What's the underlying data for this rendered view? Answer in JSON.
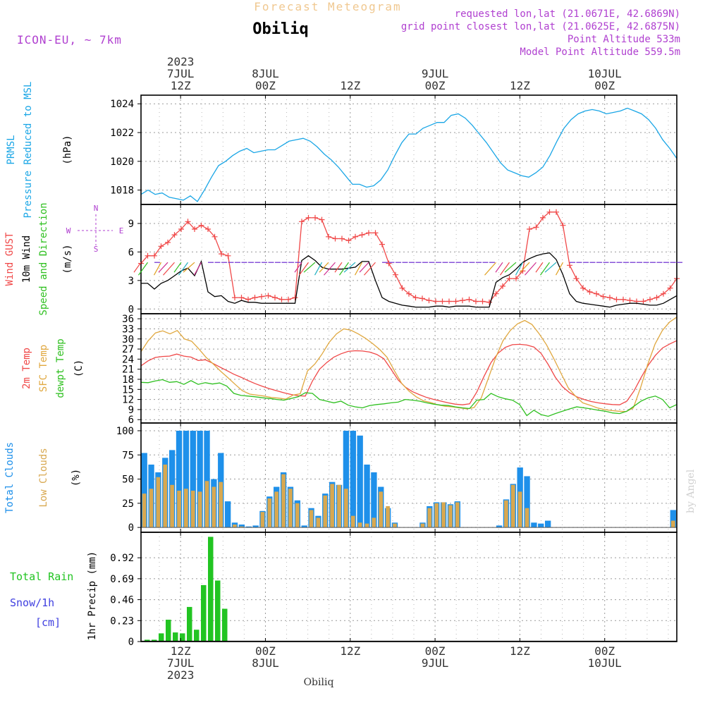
{
  "header": {
    "super_title": "Forecast Meteogram",
    "title": "Obiliq",
    "model": "ICON-EU, ~ 7km",
    "requested": "requested lon,lat (21.0671E, 42.6869N)",
    "grid_point": "grid point closest lon,lat (21.0625E, 42.6875N)",
    "point_alt": "Point Altitude 533m",
    "model_alt": "Model Point Altitude 559.5m",
    "watermark": "by Angel",
    "footer_station": "Obiliq"
  },
  "colors": {
    "pressure": "#1aa6e6",
    "gust": "#f04848",
    "wind": "#000000",
    "wind_dir": "#2fc020",
    "temp": "#f04848",
    "sfc_temp": "#e0a840",
    "dewpt": "#2fc020",
    "total_cloud": "#1e90ea",
    "low_cloud": "#d8a850",
    "rain": "#22c422",
    "snow": "#4040e0",
    "purple_text": "#b040d0",
    "title_orange": "#f0c890"
  },
  "time_axis": {
    "top_labels": [
      {
        "h": 12,
        "lines": [
          "2023",
          "7JUL",
          "12Z"
        ]
      },
      {
        "h": 24,
        "lines": [
          "8JUL",
          "00Z"
        ]
      },
      {
        "h": 36,
        "lines": [
          "12Z"
        ]
      },
      {
        "h": 48,
        "lines": [
          "9JUL",
          "00Z"
        ]
      },
      {
        "h": 60,
        "lines": [
          "12Z"
        ]
      },
      {
        "h": 72,
        "lines": [
          "10JUL",
          "00Z"
        ]
      }
    ],
    "bottom_labels": [
      {
        "h": 12,
        "lines": [
          "12Z",
          "7JUL",
          "2023"
        ]
      },
      {
        "h": 24,
        "lines": [
          "00Z",
          "8JUL"
        ]
      },
      {
        "h": 36,
        "lines": [
          "12Z"
        ]
      },
      {
        "h": 48,
        "lines": [
          "00Z",
          "9JUL"
        ]
      },
      {
        "h": 60,
        "lines": [
          "12Z"
        ]
      },
      {
        "h": 72,
        "lines": [
          "00Z",
          "10JUL"
        ]
      }
    ]
  },
  "chart_data": [
    {
      "type": "line",
      "panel": "pressure",
      "ylabel_lines": [
        "PRMSL",
        "Pressure Reduced to MSL",
        "(hPa)"
      ],
      "ylim": [
        1017,
        1024.6
      ],
      "yticks": [
        1018,
        1020,
        1022,
        1024
      ],
      "x_start_hours": 6.4,
      "x_end_hours": 82.2,
      "series": [
        {
          "values": [
            1017.7,
            1018.0,
            1017.7,
            1017.8,
            1017.5,
            1017.4,
            1017.3,
            1017.6,
            1017.2,
            1018.0,
            1018.9,
            1019.7,
            1020.0,
            1020.4,
            1020.7,
            1020.9,
            1020.6,
            1020.7,
            1020.8,
            1020.8,
            1021.1,
            1021.4,
            1021.5,
            1021.6,
            1021.4,
            1021.0,
            1020.5,
            1020.1,
            1019.6,
            1019.0,
            1018.4,
            1018.4,
            1018.2,
            1018.3,
            1018.7,
            1019.4,
            1020.4,
            1021.3,
            1021.9,
            1021.9,
            1022.3,
            1022.5,
            1022.7,
            1022.7,
            1023.2,
            1023.3,
            1023.0,
            1022.5,
            1021.9,
            1021.3,
            1020.6,
            1019.9,
            1019.4,
            1019.2,
            1019.0,
            1018.9,
            1019.2,
            1019.6,
            1020.4,
            1021.4,
            1022.3,
            1022.9,
            1023.3,
            1023.5,
            1023.6,
            1023.5,
            1023.3,
            1023.4,
            1023.5,
            1023.7,
            1023.5,
            1023.3,
            1022.9,
            1022.3,
            1021.5,
            1020.9,
            1020.2
          ]
        }
      ]
    },
    {
      "type": "line",
      "panel": "wind",
      "ylabel_lines": [
        "Wind GUST",
        "10m Wind",
        "Speed and Direction",
        "(m/s)"
      ],
      "compass": {
        "n": "N",
        "s": "S",
        "e": "E",
        "w": "W"
      },
      "ylim": [
        -0.5,
        11
      ],
      "yticks": [
        0,
        3,
        6,
        9
      ],
      "x_start_hours": 6.4,
      "x_end_hours": 82.2,
      "series": [
        {
          "values": [
            4.8,
            5.6,
            5.6,
            6.6,
            7.0,
            7.8,
            8.4,
            9.2,
            8.4,
            8.8,
            8.4,
            7.6,
            5.8,
            5.6,
            1.2,
            1.2,
            1.0,
            1.2,
            1.3,
            1.4,
            1.2,
            1.0,
            1.0,
            1.2,
            9.2,
            9.6,
            9.6,
            9.4,
            7.6,
            7.4,
            7.4,
            7.2,
            7.6,
            7.8,
            8.0,
            8.0,
            6.8,
            4.8,
            3.6,
            2.2,
            1.6,
            1.2,
            1.1,
            0.9,
            0.8,
            0.8,
            0.8,
            0.8,
            0.9,
            1.0,
            0.8,
            0.8,
            0.7,
            1.6,
            2.4,
            3.2,
            3.2,
            4.0,
            8.4,
            8.6,
            9.6,
            10.2,
            10.2,
            8.8,
            4.6,
            3.2,
            2.2,
            1.8,
            1.6,
            1.3,
            1.2,
            1.0,
            1.0,
            0.9,
            0.8,
            0.8,
            1.0,
            1.2,
            1.6,
            2.2,
            3.2
          ]
        },
        {
          "values": [
            2.7,
            2.7,
            2.1,
            2.7,
            3.0,
            3.5,
            4.0,
            4.3,
            3.5,
            5.0,
            1.8,
            1.3,
            1.4,
            0.8,
            0.6,
            0.9,
            0.7,
            0.7,
            0.6,
            0.6,
            0.6,
            0.6,
            0.6,
            0.6,
            5.1,
            5.6,
            5.1,
            4.4,
            4.2,
            4.2,
            4.2,
            4.3,
            4.4,
            5.0,
            5.0,
            3.0,
            1.2,
            0.8,
            0.6,
            0.4,
            0.3,
            0.2,
            0.2,
            0.2,
            0.3,
            0.3,
            0.2,
            0.3,
            0.3,
            0.3,
            0.2,
            0.2,
            0.2,
            2.8,
            3.3,
            3.6,
            4.2,
            4.9,
            5.3,
            5.6,
            5.8,
            5.9,
            5.2,
            3.6,
            1.6,
            0.8,
            0.6,
            0.5,
            0.4,
            0.3,
            0.2,
            0.4,
            0.5,
            0.6,
            0.6,
            0.5,
            0.4,
            0.4,
            0.6,
            1.0,
            1.4
          ]
        }
      ]
    },
    {
      "type": "line",
      "panel": "temperature",
      "ylabel_lines": [
        "2m Temp",
        "SFC Temp",
        "dewpt Temp",
        "(C)"
      ],
      "ylim": [
        5,
        37.5
      ],
      "yticks": [
        6,
        9,
        12,
        15,
        18,
        21,
        24,
        27,
        30,
        33,
        36
      ],
      "x_start_hours": 6.4,
      "x_end_hours": 82.2,
      "series": [
        {
          "values": [
            22.0,
            23.5,
            24.5,
            24.8,
            24.9,
            25.5,
            24.9,
            24.6,
            23.6,
            23.8,
            22.8,
            21.7,
            20.6,
            19.5,
            18.6,
            17.6,
            16.7,
            15.9,
            15.2,
            14.6,
            14.0,
            13.5,
            13.1,
            13.0,
            17.5,
            21.0,
            23.0,
            24.6,
            25.6,
            26.3,
            26.5,
            26.4,
            26.1,
            25.4,
            24.1,
            21.0,
            17.8,
            15.7,
            14.3,
            13.4,
            12.6,
            12.0,
            11.5,
            11.0,
            10.6,
            10.4,
            10.7,
            14.2,
            18.8,
            23.0,
            25.8,
            27.5,
            28.3,
            28.4,
            28.2,
            27.6,
            25.7,
            22.4,
            18.6,
            15.8,
            14.0,
            12.8,
            12.0,
            11.4,
            11.0,
            10.7,
            10.5,
            10.4,
            11.5,
            14.5,
            18.5,
            22.2,
            25.1,
            27.3,
            28.5,
            29.5
          ]
        },
        {
          "values": [
            26.2,
            29.5,
            31.8,
            32.4,
            31.5,
            32.5,
            30.0,
            29.3,
            27.0,
            24.5,
            22.5,
            20.4,
            18.5,
            16.5,
            14.6,
            13.6,
            13.3,
            13.0,
            12.6,
            12.4,
            12.1,
            13.3,
            13.7,
            20.5,
            22.5,
            25.5,
            29.0,
            31.5,
            33.0,
            32.6,
            31.5,
            30.2,
            28.6,
            26.8,
            24.5,
            20.5,
            16.8,
            14.5,
            12.8,
            11.6,
            11.1,
            10.4,
            10.0,
            9.8,
            9.5,
            9.2,
            9.6,
            12.5,
            18.5,
            24.5,
            29.5,
            32.5,
            34.5,
            35.5,
            34.3,
            31.5,
            28.3,
            24.2,
            19.8,
            15.5,
            13.0,
            11.0,
            10.3,
            9.5,
            9.0,
            8.7,
            8.5,
            8.4,
            9.5,
            15.5,
            22.5,
            28.5,
            32.5,
            35.0,
            36.5
          ]
        },
        {
          "values": [
            17.1,
            17.0,
            17.5,
            17.9,
            17.1,
            17.3,
            16.5,
            17.6,
            16.5,
            17.0,
            16.6,
            16.9,
            16.0,
            13.8,
            13.2,
            13.0,
            12.8,
            12.5,
            12.3,
            12.0,
            11.8,
            12.3,
            12.8,
            14.0,
            13.8,
            12.0,
            11.5,
            11.0,
            11.5,
            10.3,
            9.8,
            9.5,
            10.2,
            10.5,
            10.7,
            11.0,
            11.2,
            12.0,
            11.8,
            11.5,
            11.0,
            10.6,
            10.3,
            10.2,
            9.8,
            9.5,
            9.3,
            11.8,
            12.0,
            13.8,
            12.8,
            12.2,
            11.8,
            10.5,
            7.2,
            8.8,
            7.5,
            7.0,
            7.8,
            8.5,
            9.2,
            9.8,
            9.5,
            9.2,
            8.8,
            8.5,
            8.0,
            7.8,
            8.5,
            10.0,
            11.5,
            12.5,
            13.0,
            12.0,
            9.5,
            10.5
          ]
        }
      ]
    },
    {
      "type": "bar",
      "panel": "clouds",
      "ylabel_lines": [
        "Total Clouds",
        "Low Clouds",
        "(%)"
      ],
      "ylim": [
        -5,
        108
      ],
      "yticks": [
        0,
        25,
        50,
        75,
        100
      ],
      "x_start_hours": 6.4,
      "x_end_hours": 82.2,
      "series": [
        {
          "name": "Total",
          "values": [
            77,
            65,
            57,
            72,
            80,
            100,
            100,
            100,
            100,
            100,
            50,
            77,
            27,
            5,
            3,
            1,
            2,
            17,
            32,
            42,
            57,
            42,
            28,
            2,
            20,
            12,
            35,
            47,
            44,
            100,
            100,
            95,
            65,
            57,
            42,
            20,
            5,
            0,
            0,
            0,
            5,
            22,
            26,
            26,
            24,
            27,
            0,
            0,
            0,
            0,
            0,
            2,
            29,
            45,
            62,
            53,
            5,
            4,
            7,
            0,
            0,
            0,
            0,
            0,
            0,
            0,
            0,
            0,
            0,
            0,
            0,
            0,
            0,
            0,
            0,
            0,
            18
          ]
        },
        {
          "name": "Low",
          "values": [
            35,
            40,
            52,
            65,
            44,
            38,
            40,
            38,
            37,
            48,
            42,
            47,
            0,
            3,
            1,
            0,
            0,
            16,
            30,
            37,
            55,
            40,
            25,
            0,
            18,
            10,
            33,
            45,
            44,
            40,
            12,
            5,
            4,
            10,
            37,
            22,
            4,
            0,
            0,
            0,
            4,
            20,
            25,
            26,
            23,
            26,
            0,
            0,
            0,
            0,
            0,
            0,
            28,
            44,
            37,
            20,
            0,
            0,
            0,
            0,
            0,
            0,
            0,
            0,
            0,
            0,
            0,
            0,
            0,
            0,
            0,
            0,
            0,
            0,
            0,
            0,
            7
          ]
        }
      ]
    },
    {
      "type": "bar",
      "panel": "precip",
      "ylabel_lines": [
        "Total Rain",
        "Snow/1h",
        "[cm]",
        "1hr Precip (mm)"
      ],
      "ylim": [
        0,
        1.2
      ],
      "yticks": [
        0,
        0.23,
        0.46,
        0.69,
        0.92
      ],
      "x_start_hours": 6.4,
      "x_end_hours": 82.2,
      "series": [
        {
          "name": "Rain",
          "values": [
            0.02,
            0.02,
            0.09,
            0.24,
            0.1,
            0.09,
            0.38,
            0.13,
            0.62,
            1.15,
            0.67,
            0.36,
            0,
            0,
            0,
            0,
            0,
            0,
            0,
            0,
            0,
            0,
            0,
            0,
            0,
            0,
            0,
            0,
            0,
            0,
            0,
            0,
            0,
            0,
            0,
            0,
            0,
            0,
            0,
            0,
            0,
            0,
            0,
            0,
            0,
            0,
            0,
            0,
            0,
            0,
            0,
            0,
            0,
            0,
            0,
            0,
            0,
            0,
            0,
            0,
            0,
            0,
            0,
            0,
            0,
            0,
            0,
            0,
            0,
            0,
            0,
            0,
            0,
            0,
            0,
            0
          ]
        }
      ]
    }
  ]
}
